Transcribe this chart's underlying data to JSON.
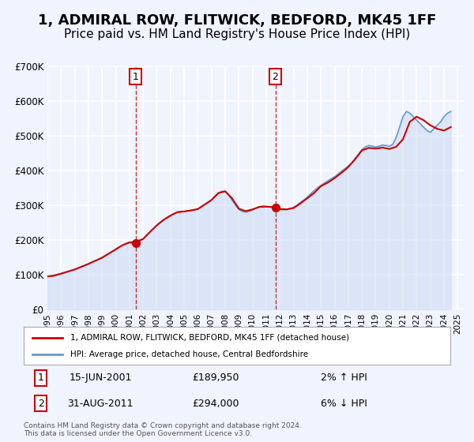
{
  "title": "1, ADMIRAL ROW, FLITWICK, BEDFORD, MK45 1FF",
  "subtitle": "Price paid vs. HM Land Registry's House Price Index (HPI)",
  "xlabel": "",
  "ylabel": "",
  "ylim": [
    0,
    700000
  ],
  "xlim_start": 1995.0,
  "xlim_end": 2025.5,
  "yticks": [
    0,
    100000,
    200000,
    300000,
    400000,
    500000,
    600000,
    700000
  ],
  "ytick_labels": [
    "£0",
    "£100K",
    "£200K",
    "£300K",
    "£400K",
    "£500K",
    "£600K",
    "£700K"
  ],
  "xticks": [
    1995,
    1996,
    1997,
    1998,
    1999,
    2000,
    2001,
    2002,
    2003,
    2004,
    2005,
    2006,
    2007,
    2008,
    2009,
    2010,
    2011,
    2012,
    2013,
    2014,
    2015,
    2016,
    2017,
    2018,
    2019,
    2020,
    2021,
    2022,
    2023,
    2024,
    2025
  ],
  "background_color": "#f0f4ff",
  "plot_bg_color": "#f0f4ff",
  "grid_color": "#ffffff",
  "title_fontsize": 13,
  "subtitle_fontsize": 11,
  "legend_label_red": "1, ADMIRAL ROW, FLITWICK, BEDFORD, MK45 1FF (detached house)",
  "legend_label_blue": "HPI: Average price, detached house, Central Bedfordshire",
  "event1_year": 2001.458,
  "event1_price": 189950,
  "event1_label": "1",
  "event1_date": "15-JUN-2001",
  "event1_price_str": "£189,950",
  "event1_hpi": "2% ↑ HPI",
  "event2_year": 2011.667,
  "event2_price": 294000,
  "event2_label": "2",
  "event2_date": "31-AUG-2011",
  "event2_price_str": "£294,000",
  "event2_hpi": "6% ↓ HPI",
  "red_line_color": "#cc0000",
  "blue_line_color": "#6699cc",
  "blue_fill_color": "#c8d8f0",
  "footer_text": "Contains HM Land Registry data © Crown copyright and database right 2024.\nThis data is licensed under the Open Government Licence v3.0.",
  "hpi_x": [
    1995.0,
    1995.25,
    1995.5,
    1995.75,
    1996.0,
    1996.25,
    1996.5,
    1996.75,
    1997.0,
    1997.25,
    1997.5,
    1997.75,
    1998.0,
    1998.25,
    1998.5,
    1998.75,
    1999.0,
    1999.25,
    1999.5,
    1999.75,
    2000.0,
    2000.25,
    2000.5,
    2000.75,
    2001.0,
    2001.25,
    2001.5,
    2001.75,
    2002.0,
    2002.25,
    2002.5,
    2002.75,
    2003.0,
    2003.25,
    2003.5,
    2003.75,
    2004.0,
    2004.25,
    2004.5,
    2004.75,
    2005.0,
    2005.25,
    2005.5,
    2005.75,
    2006.0,
    2006.25,
    2006.5,
    2006.75,
    2007.0,
    2007.25,
    2007.5,
    2007.75,
    2008.0,
    2008.25,
    2008.5,
    2008.75,
    2009.0,
    2009.25,
    2009.5,
    2009.75,
    2010.0,
    2010.25,
    2010.5,
    2010.75,
    2011.0,
    2011.25,
    2011.5,
    2011.75,
    2012.0,
    2012.25,
    2012.5,
    2012.75,
    2013.0,
    2013.25,
    2013.5,
    2013.75,
    2014.0,
    2014.25,
    2014.5,
    2014.75,
    2015.0,
    2015.25,
    2015.5,
    2015.75,
    2016.0,
    2016.25,
    2016.5,
    2016.75,
    2017.0,
    2017.25,
    2017.5,
    2017.75,
    2018.0,
    2018.25,
    2018.5,
    2018.75,
    2019.0,
    2019.25,
    2019.5,
    2019.75,
    2020.0,
    2020.25,
    2020.5,
    2020.75,
    2021.0,
    2021.25,
    2021.5,
    2021.75,
    2022.0,
    2022.25,
    2022.5,
    2022.75,
    2023.0,
    2023.25,
    2023.5,
    2023.75,
    2024.0,
    2024.25,
    2024.5
  ],
  "hpi_y": [
    95000,
    97000,
    99000,
    101000,
    103000,
    106000,
    109000,
    112000,
    115000,
    119000,
    123000,
    127000,
    131000,
    136000,
    140000,
    144000,
    149000,
    155000,
    161000,
    167000,
    173000,
    180000,
    185000,
    190000,
    193000,
    196000,
    195000,
    197000,
    203000,
    213000,
    223000,
    233000,
    242000,
    251000,
    258000,
    265000,
    270000,
    276000,
    280000,
    282000,
    282000,
    284000,
    285000,
    286000,
    289000,
    295000,
    302000,
    308000,
    315000,
    325000,
    335000,
    340000,
    340000,
    330000,
    315000,
    300000,
    288000,
    282000,
    280000,
    282000,
    286000,
    292000,
    296000,
    298000,
    296000,
    295000,
    294000,
    291000,
    288000,
    287000,
    288000,
    290000,
    294000,
    300000,
    308000,
    315000,
    323000,
    333000,
    342000,
    350000,
    357000,
    364000,
    370000,
    376000,
    382000,
    390000,
    398000,
    405000,
    413000,
    422000,
    435000,
    447000,
    460000,
    468000,
    472000,
    470000,
    468000,
    470000,
    473000,
    472000,
    470000,
    475000,
    495000,
    525000,
    555000,
    570000,
    565000,
    555000,
    545000,
    535000,
    525000,
    515000,
    510000,
    520000,
    530000,
    540000,
    555000,
    565000,
    570000
  ],
  "price_x": [
    1995.0,
    1995.5,
    1996.0,
    1996.5,
    1997.0,
    1997.5,
    1998.0,
    1998.5,
    1999.0,
    1999.5,
    2000.0,
    2000.5,
    2001.0,
    2001.458,
    2001.5,
    2002.0,
    2002.5,
    2003.0,
    2003.5,
    2004.0,
    2004.5,
    2005.0,
    2005.5,
    2006.0,
    2006.5,
    2007.0,
    2007.5,
    2008.0,
    2008.5,
    2009.0,
    2009.5,
    2010.0,
    2010.5,
    2011.0,
    2011.667,
    2011.5,
    2012.0,
    2012.5,
    2013.0,
    2013.5,
    2014.0,
    2014.5,
    2015.0,
    2015.5,
    2016.0,
    2016.5,
    2017.0,
    2017.5,
    2018.0,
    2018.5,
    2019.0,
    2019.5,
    2020.0,
    2020.5,
    2021.0,
    2021.5,
    2022.0,
    2022.5,
    2023.0,
    2023.5,
    2024.0,
    2024.5
  ],
  "price_y": [
    95000,
    97000,
    103000,
    109000,
    115000,
    123000,
    131000,
    140000,
    149000,
    161000,
    173000,
    185000,
    193000,
    189950,
    195000,
    203000,
    223000,
    242000,
    258000,
    270000,
    280000,
    282000,
    285000,
    289000,
    302000,
    315000,
    335000,
    340000,
    320000,
    290000,
    283000,
    288000,
    295000,
    296000,
    294000,
    292000,
    289000,
    288000,
    292000,
    305000,
    320000,
    335000,
    355000,
    365000,
    378000,
    393000,
    410000,
    432000,
    458000,
    465000,
    463000,
    466000,
    462000,
    468000,
    490000,
    540000,
    555000,
    545000,
    530000,
    520000,
    515000,
    525000
  ]
}
